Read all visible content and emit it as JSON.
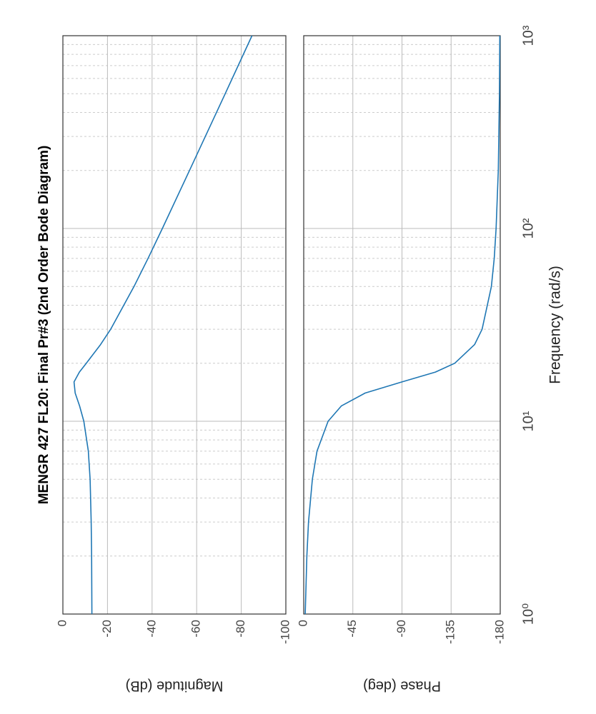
{
  "chart_data": [
    {
      "type": "line",
      "title": "MENGR 427 FL20: Final Pr#3 (2nd Order Bode Diagram)",
      "ylabel": "Magnitude (dB)",
      "x": [
        1,
        2,
        3,
        5,
        7,
        10,
        12,
        14,
        16,
        18,
        20,
        25,
        30,
        50,
        70,
        100,
        200,
        500,
        1000
      ],
      "values": [
        -13.0,
        -12.9,
        -12.7,
        -12.2,
        -11.4,
        -9.4,
        -7.5,
        -5.5,
        -5.0,
        -7.4,
        -10.5,
        -16.9,
        -21.4,
        -31.9,
        -38.2,
        -44.6,
        -56.8,
        -72.8,
        -84.8
      ],
      "color": "#1f77b4",
      "log_x": true,
      "grid": true,
      "xlim": [
        1,
        1000
      ],
      "xticks": [
        1,
        10,
        100,
        1000
      ],
      "ylim": [
        -100,
        0
      ],
      "yticks": [
        0,
        -20,
        -40,
        -60,
        -80,
        -100
      ]
    },
    {
      "type": "line",
      "ylabel": "Phase (deg)",
      "xlabel": "Frequency  (rad/s)",
      "x": [
        1,
        2,
        3,
        5,
        7,
        10,
        12,
        14,
        16,
        18,
        20,
        25,
        30,
        50,
        70,
        100,
        200,
        500,
        1000
      ],
      "values": [
        -1.4,
        -2.9,
        -4.4,
        -7.9,
        -12.2,
        -22.3,
        -34.4,
        -56.2,
        -90,
        -120.6,
        -138.4,
        -156.5,
        -163.4,
        -171.9,
        -174.5,
        -176.2,
        -178.2,
        -179.3,
        -179.6
      ],
      "color": "#1f77b4",
      "log_x": true,
      "grid": true,
      "xlim": [
        1,
        1000
      ],
      "xticks": [
        {
          "value": 1,
          "label": "10⁰"
        },
        {
          "value": 10,
          "label": "10¹"
        },
        {
          "value": 100,
          "label": "10²"
        },
        {
          "value": 1000,
          "label": "10³"
        }
      ],
      "ylim": [
        -180,
        0
      ],
      "yticks": [
        0,
        -45,
        -90,
        -135,
        -180
      ]
    }
  ]
}
